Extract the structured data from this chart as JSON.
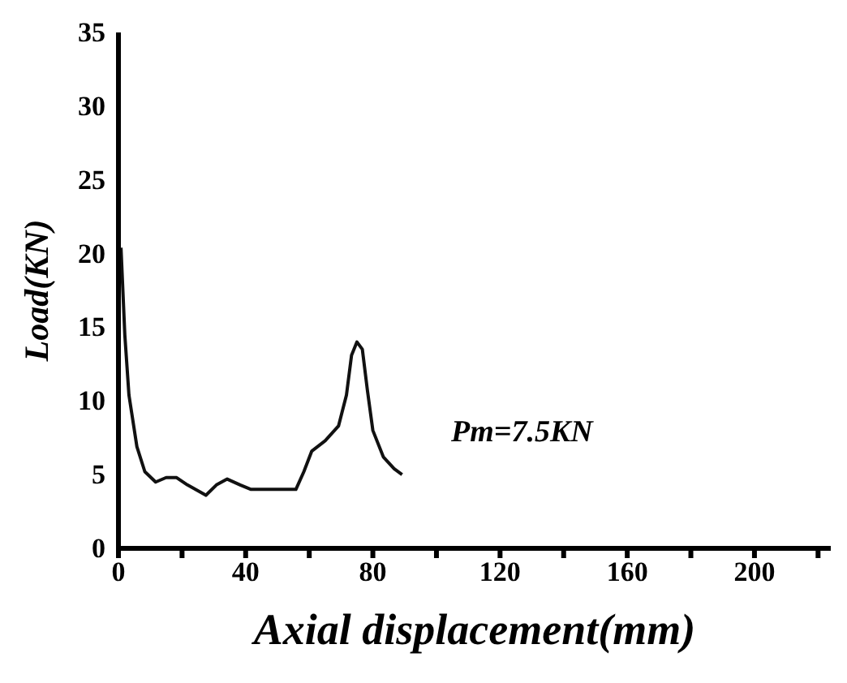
{
  "chart_data": {
    "type": "line",
    "xlabel": "Axial displacement(mm)",
    "ylabel": "Load(KN)",
    "annotations": [
      "Pm=7.5KN"
    ],
    "xlim": [
      0,
      224
    ],
    "xticks": [
      0,
      {
        "value": 20,
        "label": null
      },
      40,
      {
        "value": 60,
        "label": null
      },
      80,
      {
        "value": 100,
        "label": null
      },
      120,
      {
        "value": 140,
        "label": null
      },
      160,
      {
        "value": 180,
        "label": null
      },
      200,
      {
        "value": 220,
        "label": null
      }
    ],
    "ylim": [
      0,
      35
    ],
    "yticks": [
      0,
      5,
      10,
      15,
      20,
      25,
      30,
      35
    ],
    "grid": false,
    "marker": "none",
    "line_style": "solid",
    "series": [
      {
        "color": "#111111",
        "x": [
          0.8,
          2,
          3.3,
          5.8,
          8.3,
          11.7,
          15,
          18.3,
          21.7,
          27.5,
          30.8,
          34.2,
          38.3,
          41.7,
          55.8,
          58.3,
          60.8,
          65,
          69.2,
          71.7,
          73.3,
          75,
          76.7,
          78.3,
          80,
          83.3,
          86.7,
          89.2
        ],
        "values": [
          20.4,
          14.5,
          10.4,
          6.9,
          5.2,
          4.5,
          4.8,
          4.8,
          4.3,
          3.6,
          4.3,
          4.7,
          4.3,
          4,
          4,
          5.2,
          6.6,
          7.3,
          8.3,
          10.4,
          13.1,
          14,
          13.5,
          10.7,
          8,
          6.2,
          5.4,
          5
        ]
      }
    ]
  }
}
